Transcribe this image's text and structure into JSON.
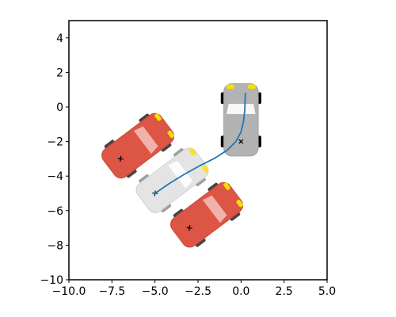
{
  "chart_data": {
    "type": "scatter",
    "title": "",
    "xlabel": "",
    "ylabel": "",
    "xlim": [
      -10,
      5
    ],
    "ylim": [
      -10,
      5
    ],
    "aspect": "equal",
    "grid": false,
    "x_ticks": [
      -10.0,
      -7.5,
      -5.0,
      -2.5,
      0.0,
      2.5,
      5.0
    ],
    "x_tick_labels": [
      "−10.0",
      "−7.5",
      "−5.0",
      "−2.5",
      "0.0",
      "2.5",
      "5.0"
    ],
    "y_ticks": [
      -10,
      -8,
      -6,
      -4,
      -2,
      0,
      2,
      4
    ],
    "y_tick_labels": [
      "−10",
      "−8",
      "−6",
      "−4",
      "−2",
      "0",
      "2",
      "4"
    ],
    "path": {
      "color": "#1f77b4",
      "x": [
        -5.0,
        -4.2,
        -3.3,
        -2.4,
        -1.5,
        -0.8,
        -0.3,
        0.0,
        0.15,
        0.22,
        0.25
      ],
      "y": [
        -5.0,
        -4.45,
        -3.9,
        -3.4,
        -2.95,
        -2.5,
        -2.0,
        -1.45,
        -0.8,
        -0.15,
        0.8
      ]
    },
    "vehicles": [
      {
        "role": "ego-start",
        "x": -5.0,
        "y": -5.0,
        "heading_deg": 37,
        "color": "#e0e0e0",
        "opacity": 0.85
      },
      {
        "role": "ego-goal",
        "x": 0.0,
        "y": -2.0,
        "heading_deg": 90,
        "color": "#b3b3b3",
        "opacity": 1.0
      },
      {
        "role": "obstacle",
        "x": -7.0,
        "y": -3.0,
        "heading_deg": 37,
        "color": "#dd5544",
        "opacity": 1.0
      },
      {
        "role": "obstacle",
        "x": -3.0,
        "y": -7.0,
        "heading_deg": 37,
        "color": "#dd5544",
        "opacity": 1.0
      }
    ],
    "vehicle_shape": {
      "length": 4.2,
      "width": 2.0
    }
  }
}
